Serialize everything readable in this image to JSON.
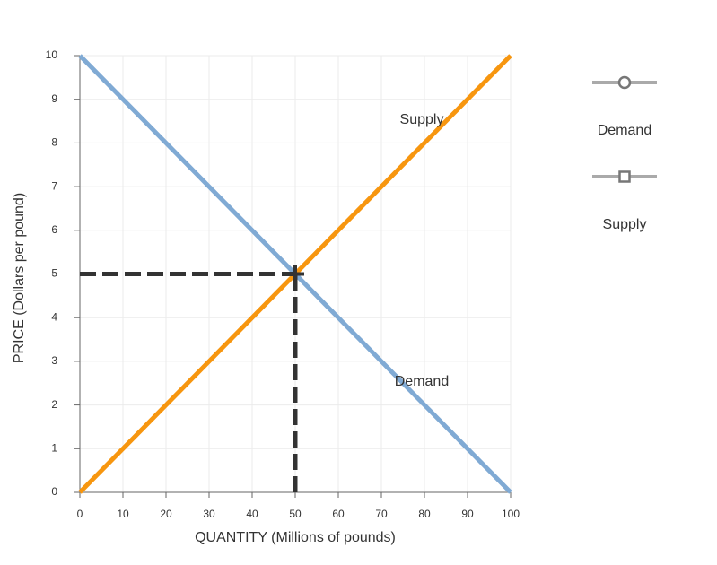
{
  "chart_data": {
    "type": "line",
    "x_label": "QUANTITY (Millions of pounds)",
    "y_label": "PRICE (Dollars per pound)",
    "xlim": [
      0,
      100
    ],
    "ylim": [
      0,
      10
    ],
    "xticks": [
      0,
      10,
      20,
      30,
      40,
      50,
      60,
      70,
      80,
      90,
      100
    ],
    "yticks": [
      0,
      1,
      2,
      3,
      4,
      5,
      6,
      7,
      8,
      9,
      10
    ],
    "grid": true,
    "legend": "right",
    "series": [
      {
        "name": "Demand",
        "color": "#80aad4",
        "marker": "circle",
        "x": [
          0,
          100
        ],
        "values": [
          10,
          0
        ]
      },
      {
        "name": "Supply",
        "color": "#f7960f",
        "marker": "square",
        "x": [
          0,
          100
        ],
        "values": [
          0,
          10
        ]
      }
    ],
    "equilibrium": {
      "x": 50,
      "y": 5,
      "color": "#333333"
    }
  }
}
